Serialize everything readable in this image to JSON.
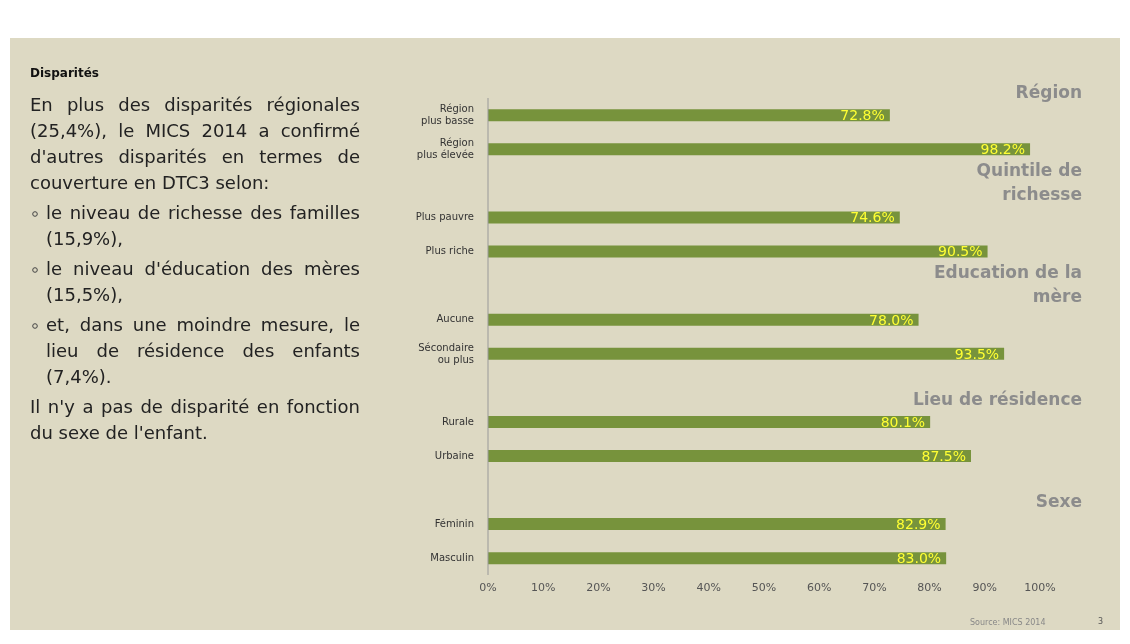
{
  "chart_data": {
    "type": "bar",
    "orientation": "horizontal",
    "title": "Disparités",
    "categories": [
      "Région\nplus basse",
      "Région\nplus élevée",
      null,
      "Plus pauvre",
      "Plus riche",
      null,
      "Aucune",
      "Sécondaire\nou plus",
      null,
      "Rurale",
      "Urbaine",
      null,
      "Féminin",
      "Masculin"
    ],
    "values": [
      72.8,
      98.2,
      null,
      74.6,
      90.5,
      null,
      78.0,
      93.5,
      null,
      80.1,
      87.5,
      null,
      82.9,
      83.0
    ],
    "value_labels": [
      "72.8%",
      "98.2%",
      null,
      "74.6%",
      "90.5%",
      null,
      "78.0%",
      "93.5%",
      null,
      "80.1%",
      "87.5%",
      null,
      "82.9%",
      "83.0%"
    ],
    "color": "#77933c",
    "xlim": [
      0,
      100
    ],
    "xticks": [
      {
        "value": 0,
        "label": "0%"
      },
      {
        "value": 10,
        "label": "10%"
      },
      {
        "value": 20,
        "label": "20%"
      },
      {
        "value": 30,
        "label": "30%"
      },
      {
        "value": 40,
        "label": "40%"
      },
      {
        "value": 50,
        "label": "50%"
      },
      {
        "value": 60,
        "label": "60%"
      },
      {
        "value": 70,
        "label": "70%"
      },
      {
        "value": 80,
        "label": "80%"
      },
      {
        "value": 90,
        "label": "90%"
      },
      {
        "value": 100,
        "label": "100%"
      }
    ],
    "annotations": [
      "En plus des disparités régionales (25,4%), le MICS 2014 a confirmé d'autres disparités en termes de couverture en DTC3 selon:",
      "le niveau de richesse des familles (15,9%),",
      "le niveau d'éducation des mères (15,5%),",
      "et, dans une moindre mesure, le lieu de résidence des enfants (7,4%).",
      "Il n'y a pas de disparité en fonction du sexe de l'enfant.",
      "Région",
      "Quintile de richesse",
      "Education de la mère",
      "Lieu de résidence",
      "Sexe",
      "Source: MICS 2014",
      "3"
    ]
  }
}
